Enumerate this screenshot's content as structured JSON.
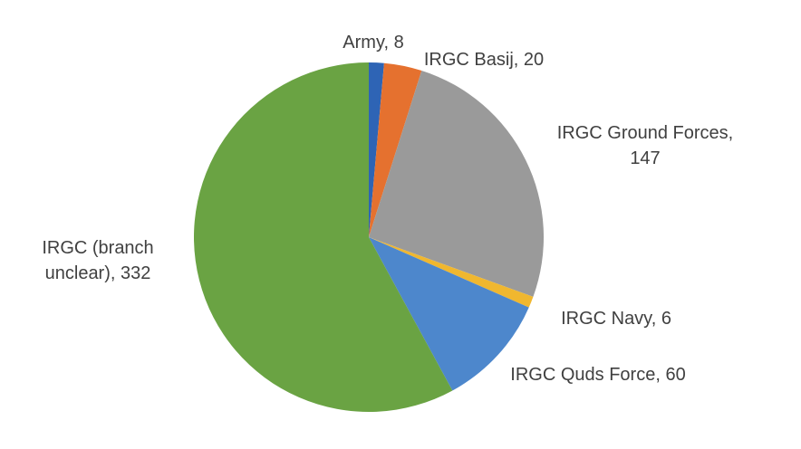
{
  "chart_data": {
    "type": "pie",
    "title": "",
    "legend": "none",
    "slices": [
      {
        "label_lines": [
          "Army, 8"
        ],
        "value": 8,
        "color": "#2E64B5"
      },
      {
        "label_lines": [
          "IRGC Basij, 20"
        ],
        "value": 20,
        "color": "#E5712F"
      },
      {
        "label_lines": [
          "IRGC Ground Forces,",
          "147"
        ],
        "value": 147,
        "color": "#9A9A9A"
      },
      {
        "label_lines": [
          "IRGC Navy, 6"
        ],
        "value": 6,
        "color": "#F0B72F"
      },
      {
        "label_lines": [
          "IRGC Quds Force, 60"
        ],
        "value": 60,
        "color": "#4D87CC"
      },
      {
        "label_lines": [
          "IRGC (branch",
          "unclear), 332"
        ],
        "value": 332,
        "color": "#6AA343"
      }
    ]
  }
}
